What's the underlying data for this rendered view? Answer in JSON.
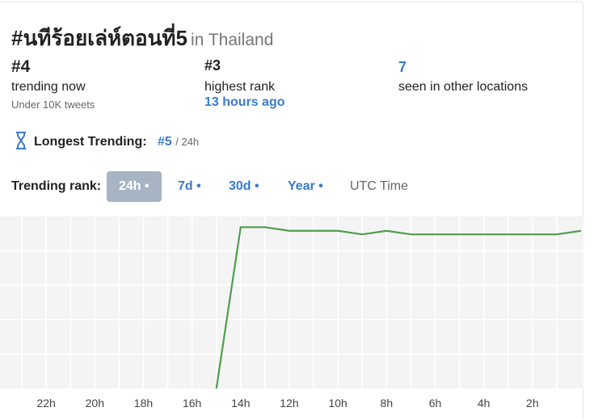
{
  "header": {
    "title": "#นทีร้อยเล่ห์ตอนที่5",
    "location": "in Thailand"
  },
  "stats": [
    {
      "value": "#4",
      "label": "trending now",
      "note": "Under 10K tweets"
    },
    {
      "value": "#3",
      "label": "highest rank",
      "note": "13 hours ago"
    },
    {
      "value": "7",
      "label": "seen in other locations"
    }
  ],
  "longest": {
    "label": "Longest Trending:",
    "value": "#5",
    "period": "/ 24h"
  },
  "tabs": {
    "label": "Trending rank:",
    "items": [
      "24h •",
      "7d •",
      "30d •",
      "Year •",
      "UTC Time"
    ],
    "active": 0
  },
  "chart_data": {
    "type": "line",
    "x": [
      15,
      14,
      13,
      12,
      11,
      10,
      9,
      8,
      7,
      6,
      5,
      4,
      3,
      2,
      1,
      0
    ],
    "series": [
      {
        "color": "#4f9d4f",
        "values": [
          48,
          3,
          3,
          4,
          4,
          4,
          5,
          4,
          5,
          5,
          5,
          5,
          5,
          5,
          5,
          4
        ]
      }
    ],
    "xlim": [
      23.9,
      -0.1
    ],
    "xticks": [
      {
        "value": 22,
        "label": "22h"
      },
      {
        "value": 20,
        "label": "20h"
      },
      {
        "value": 18,
        "label": "18h"
      },
      {
        "value": 16,
        "label": "16h"
      },
      {
        "value": 14,
        "label": "14h"
      },
      {
        "value": 12,
        "label": "12h"
      },
      {
        "value": 10,
        "label": "10h"
      },
      {
        "value": 8,
        "label": "8h"
      },
      {
        "value": 6,
        "label": "6h"
      },
      {
        "value": 4,
        "label": "4h"
      },
      {
        "value": 2,
        "label": "2h"
      }
    ],
    "ylim": [
      48,
      0
    ],
    "grid": true
  }
}
